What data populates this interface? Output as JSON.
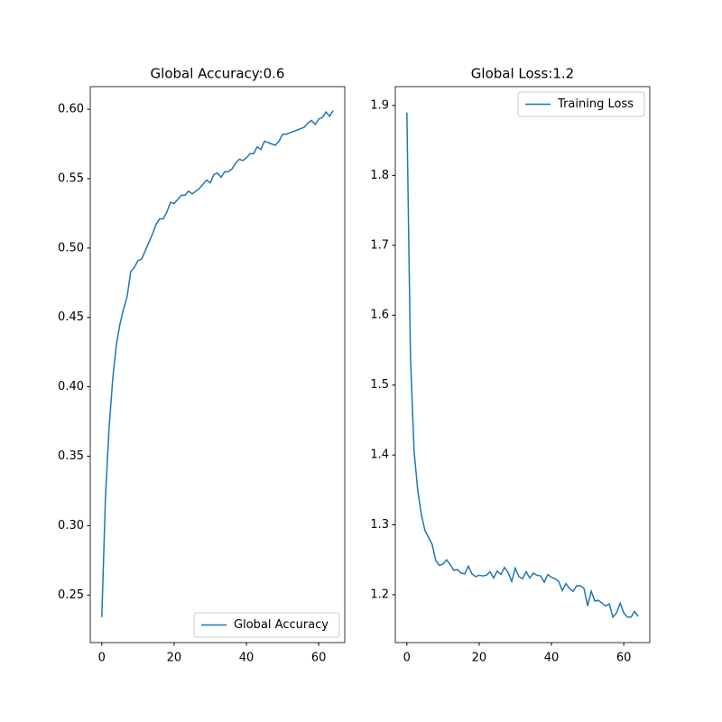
{
  "chart_data": [
    {
      "type": "line",
      "title": "Global Accuracy:0.6",
      "x": [
        0,
        1,
        2,
        3,
        4,
        5,
        6,
        7,
        8,
        9,
        10,
        11,
        12,
        13,
        14,
        15,
        16,
        17,
        18,
        19,
        20,
        21,
        22,
        23,
        24,
        25,
        26,
        27,
        28,
        29,
        30,
        31,
        32,
        33,
        34,
        35,
        36,
        37,
        38,
        39,
        40,
        41,
        42,
        43,
        44,
        45,
        46,
        47,
        48,
        49,
        50,
        51,
        52,
        53,
        54,
        55,
        56,
        57,
        58,
        59,
        60,
        61,
        62,
        63,
        64
      ],
      "series": [
        {
          "name": "Global Accuracy",
          "color": "#1f77b4",
          "values": [
            0.234,
            0.32,
            0.37,
            0.405,
            0.43,
            0.445,
            0.456,
            0.465,
            0.483,
            0.486,
            0.491,
            0.492,
            0.498,
            0.504,
            0.51,
            0.517,
            0.521,
            0.521,
            0.526,
            0.533,
            0.532,
            0.535,
            0.538,
            0.538,
            0.541,
            0.539,
            0.541,
            0.543,
            0.546,
            0.549,
            0.547,
            0.553,
            0.554,
            0.551,
            0.555,
            0.555,
            0.557,
            0.561,
            0.564,
            0.563,
            0.565,
            0.568,
            0.568,
            0.573,
            0.571,
            0.577,
            0.576,
            0.575,
            0.574,
            0.577,
            0.582,
            0.582,
            0.583,
            0.584,
            0.585,
            0.586,
            0.587,
            0.59,
            0.592,
            0.589,
            0.593,
            0.594,
            0.598,
            0.595,
            0.599
          ]
        }
      ],
      "xlim": [
        -3.2,
        67.2
      ],
      "ylim": [
        0.2157,
        0.6163
      ],
      "xticks": [
        0,
        20,
        40,
        60
      ],
      "yticks": [
        0.25,
        {
          "value": 0.3,
          "label": "0.30"
        },
        0.35,
        {
          "value": 0.4,
          "label": "0.40"
        },
        0.45,
        {
          "value": 0.5,
          "label": "0.50"
        },
        0.55,
        {
          "value": 0.6,
          "label": "0.60"
        }
      ],
      "legend": "lower right"
    },
    {
      "type": "line",
      "title": "Global Loss:1.2",
      "x": [
        0,
        1,
        2,
        3,
        4,
        5,
        6,
        7,
        8,
        9,
        10,
        11,
        12,
        13,
        14,
        15,
        16,
        17,
        18,
        19,
        20,
        21,
        22,
        23,
        24,
        25,
        26,
        27,
        28,
        29,
        30,
        31,
        32,
        33,
        34,
        35,
        36,
        37,
        38,
        39,
        40,
        41,
        42,
        43,
        44,
        45,
        46,
        47,
        48,
        49,
        50,
        51,
        52,
        53,
        54,
        55,
        56,
        57,
        58,
        59,
        60,
        61,
        62,
        63,
        64
      ],
      "series": [
        {
          "name": "Training Loss",
          "color": "#1f77b4",
          "values": [
            1.89,
            1.54,
            1.405,
            1.35,
            1.315,
            1.292,
            1.282,
            1.272,
            1.249,
            1.242,
            1.244,
            1.25,
            1.243,
            1.235,
            1.236,
            1.231,
            1.23,
            1.241,
            1.23,
            1.226,
            1.228,
            1.227,
            1.228,
            1.233,
            1.224,
            1.234,
            1.229,
            1.239,
            1.232,
            1.219,
            1.238,
            1.226,
            1.223,
            1.233,
            1.224,
            1.231,
            1.228,
            1.227,
            1.218,
            1.229,
            1.225,
            1.223,
            1.219,
            1.206,
            1.216,
            1.209,
            1.205,
            1.213,
            1.213,
            1.209,
            1.184,
            1.205,
            1.191,
            1.192,
            1.188,
            1.184,
            1.187,
            1.168,
            1.174,
            1.188,
            1.174,
            1.168,
            1.168,
            1.176,
            1.169
          ]
        }
      ],
      "xlim": [
        -3.2,
        67.2
      ],
      "ylim": [
        1.1316,
        1.927
      ],
      "xticks": [
        0,
        20,
        40,
        60
      ],
      "yticks": [
        1.2,
        1.3,
        1.4,
        1.5,
        1.6,
        1.7,
        1.8,
        1.9
      ],
      "legend": "upper right"
    }
  ]
}
